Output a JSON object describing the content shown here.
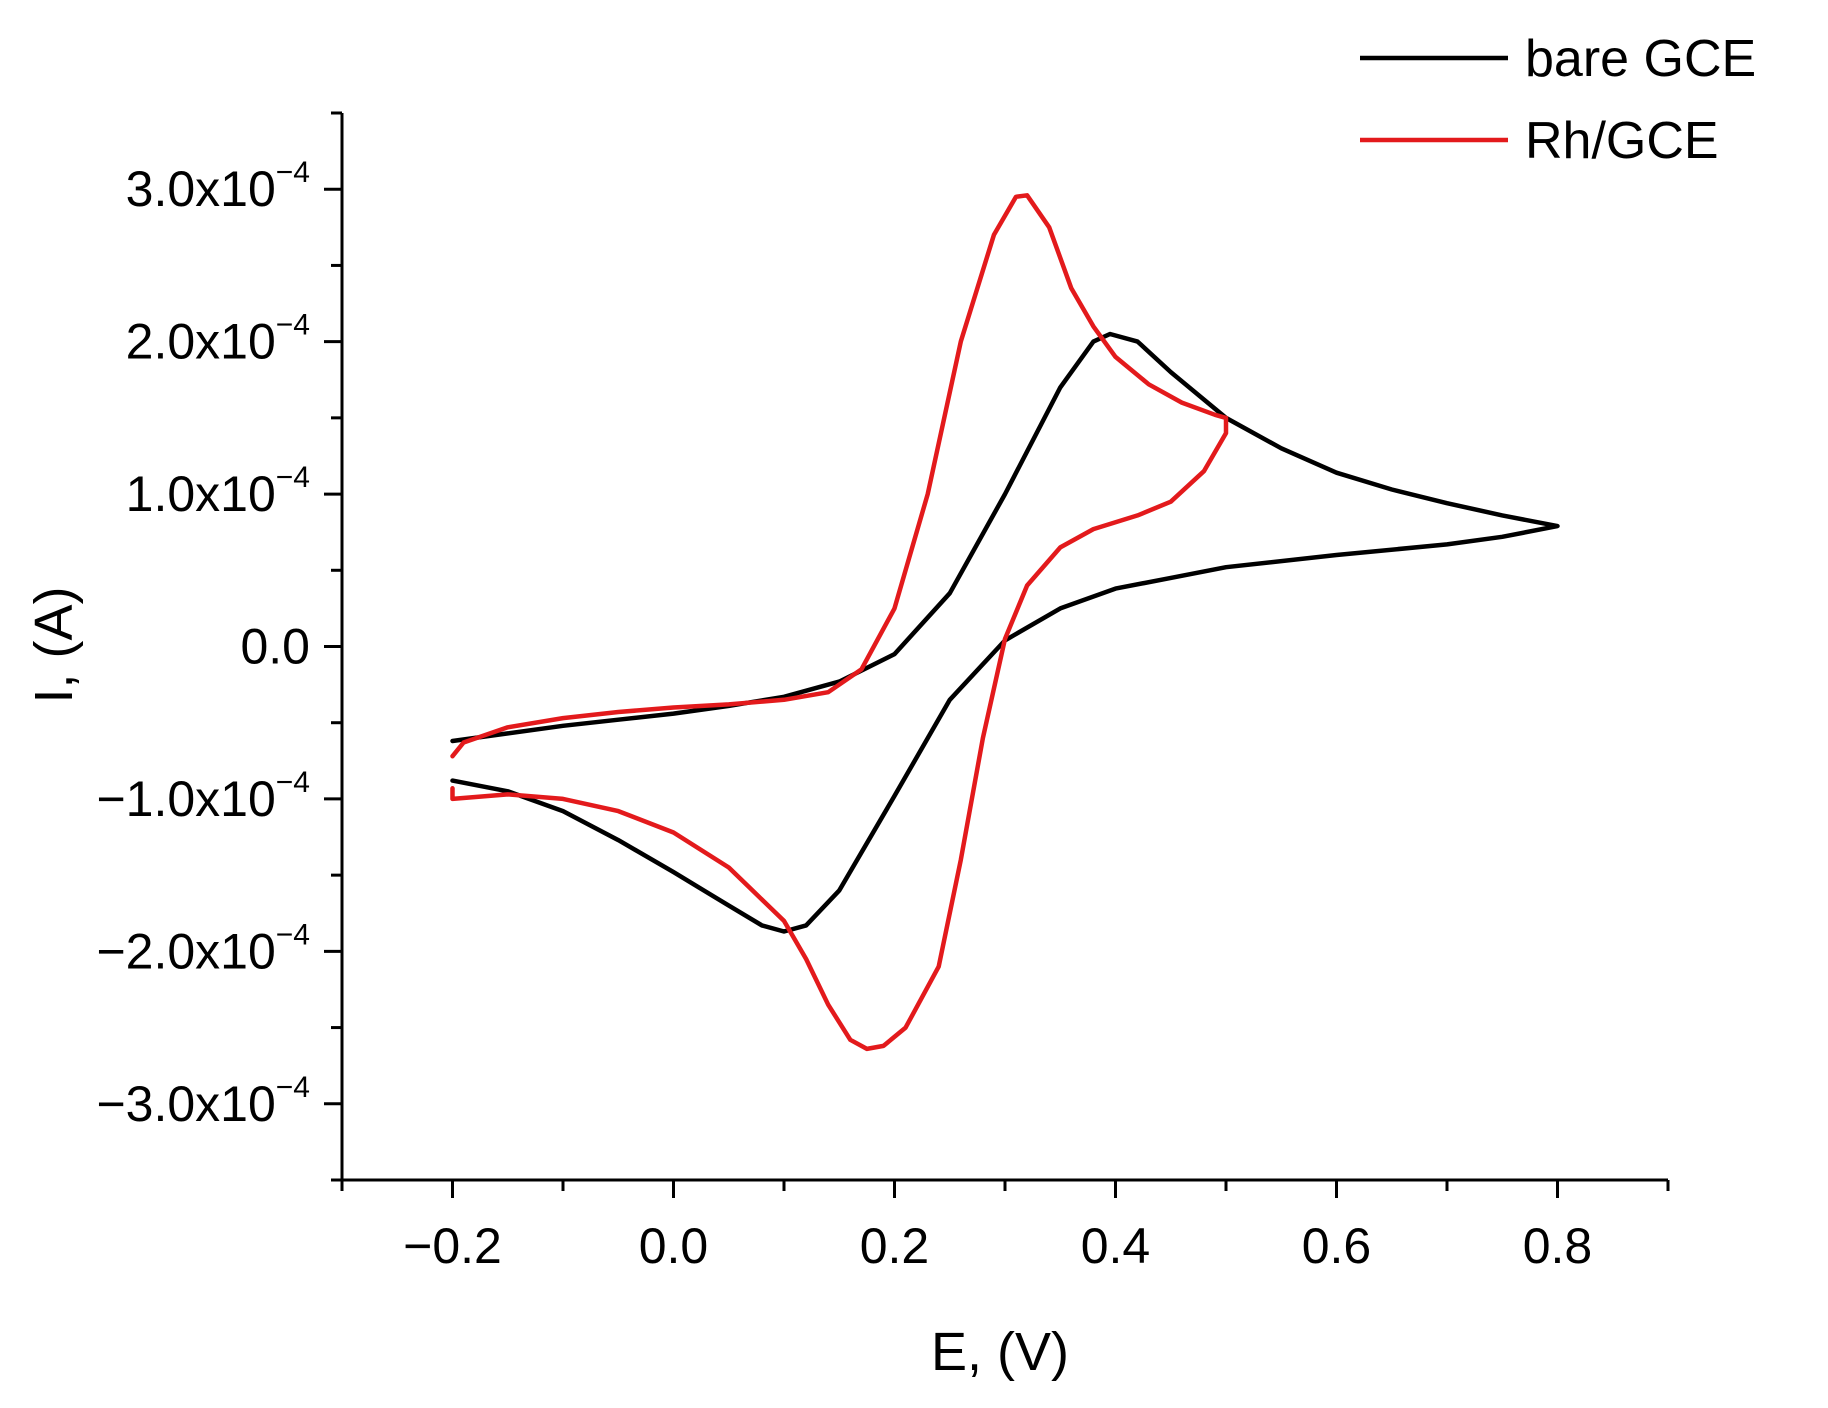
{
  "chart_data": {
    "type": "line",
    "title": "",
    "xlabel": "E, (V)",
    "ylabel": "I, (A)",
    "xlim": [
      -0.3,
      0.9
    ],
    "ylim": [
      -0.00035,
      0.00035
    ],
    "x_ticks": [
      {
        "value": -0.2,
        "label": "−0.2"
      },
      {
        "value": 0.0,
        "label": "0.0"
      },
      {
        "value": 0.2,
        "label": "0.2"
      },
      {
        "value": 0.4,
        "label": "0.4"
      },
      {
        "value": 0.6,
        "label": "0.6"
      },
      {
        "value": 0.8,
        "label": "0.8"
      }
    ],
    "y_ticks": [
      {
        "value": 0.0003,
        "mantissa": "3.0x10",
        "exponent": "−4"
      },
      {
        "value": 0.0002,
        "mantissa": "2.0x10",
        "exponent": "−4"
      },
      {
        "value": 0.0001,
        "mantissa": "1.0x10",
        "exponent": "−4"
      },
      {
        "value": 0.0,
        "mantissa": "0.0",
        "exponent": ""
      },
      {
        "value": -0.0001,
        "mantissa": "−1.0x10",
        "exponent": "−4"
      },
      {
        "value": -0.0002,
        "mantissa": "−2.0x10",
        "exponent": "−4"
      },
      {
        "value": -0.0003,
        "mantissa": "−3.0x10",
        "exponent": "−4"
      }
    ],
    "grid": false,
    "legend": "top-right",
    "series": [
      {
        "name": "bare GCE",
        "color": "#000000",
        "points": [
          [
            -0.2,
            -6.2e-05
          ],
          [
            -0.15,
            -5.7e-05
          ],
          [
            -0.1,
            -5.2e-05
          ],
          [
            -0.05,
            -4.8e-05
          ],
          [
            0.0,
            -4.4e-05
          ],
          [
            0.05,
            -3.9e-05
          ],
          [
            0.1,
            -3.3e-05
          ],
          [
            0.15,
            -2.3e-05
          ],
          [
            0.2,
            -5e-06
          ],
          [
            0.25,
            3.5e-05
          ],
          [
            0.3,
            0.0001
          ],
          [
            0.35,
            0.00017
          ],
          [
            0.38,
            0.0002
          ],
          [
            0.395,
            0.000205
          ],
          [
            0.42,
            0.0002
          ],
          [
            0.45,
            0.00018
          ],
          [
            0.5,
            0.00015
          ],
          [
            0.55,
            0.00013
          ],
          [
            0.6,
            0.000114
          ],
          [
            0.65,
            0.000103
          ],
          [
            0.7,
            9.4e-05
          ],
          [
            0.75,
            8.6e-05
          ],
          [
            0.8,
            7.9e-05
          ],
          [
            0.75,
            7.2e-05
          ],
          [
            0.7,
            6.7e-05
          ],
          [
            0.6,
            6e-05
          ],
          [
            0.5,
            5.2e-05
          ],
          [
            0.45,
            4.5e-05
          ],
          [
            0.4,
            3.8e-05
          ],
          [
            0.35,
            2.5e-05
          ],
          [
            0.3,
            4e-06
          ],
          [
            0.25,
            -3.5e-05
          ],
          [
            0.2,
            -9.8e-05
          ],
          [
            0.15,
            -0.00016
          ],
          [
            0.12,
            -0.000183
          ],
          [
            0.1,
            -0.000187
          ],
          [
            0.08,
            -0.000183
          ],
          [
            0.05,
            -0.00017
          ],
          [
            0.0,
            -0.000148
          ],
          [
            -0.05,
            -0.000127
          ],
          [
            -0.1,
            -0.000108
          ],
          [
            -0.15,
            -9.5e-05
          ],
          [
            -0.2,
            -8.8e-05
          ]
        ]
      },
      {
        "name": "Rh/GCE",
        "color": "#e31a1c",
        "points": [
          [
            -0.2,
            -7.2e-05
          ],
          [
            -0.19,
            -6.3e-05
          ],
          [
            -0.15,
            -5.3e-05
          ],
          [
            -0.1,
            -4.7e-05
          ],
          [
            -0.05,
            -4.3e-05
          ],
          [
            0.0,
            -4e-05
          ],
          [
            0.05,
            -3.8e-05
          ],
          [
            0.1,
            -3.5e-05
          ],
          [
            0.14,
            -3e-05
          ],
          [
            0.17,
            -1.5e-05
          ],
          [
            0.2,
            2.5e-05
          ],
          [
            0.23,
            0.0001
          ],
          [
            0.26,
            0.0002
          ],
          [
            0.29,
            0.00027
          ],
          [
            0.31,
            0.000295
          ],
          [
            0.32,
            0.000296
          ],
          [
            0.34,
            0.000275
          ],
          [
            0.36,
            0.000235
          ],
          [
            0.38,
            0.00021
          ],
          [
            0.4,
            0.00019
          ],
          [
            0.43,
            0.000172
          ],
          [
            0.46,
            0.00016
          ],
          [
            0.49,
            0.000152
          ],
          [
            0.5,
            0.00015
          ],
          [
            0.5,
            0.00014
          ],
          [
            0.48,
            0.000115
          ],
          [
            0.45,
            9.5e-05
          ],
          [
            0.42,
            8.6e-05
          ],
          [
            0.38,
            7.7e-05
          ],
          [
            0.35,
            6.5e-05
          ],
          [
            0.32,
            4e-05
          ],
          [
            0.3,
            5e-06
          ],
          [
            0.28,
            -6e-05
          ],
          [
            0.26,
            -0.00014
          ],
          [
            0.24,
            -0.00021
          ],
          [
            0.21,
            -0.00025
          ],
          [
            0.19,
            -0.000262
          ],
          [
            0.175,
            -0.000264
          ],
          [
            0.16,
            -0.000258
          ],
          [
            0.14,
            -0.000235
          ],
          [
            0.12,
            -0.000205
          ],
          [
            0.1,
            -0.00018
          ],
          [
            0.05,
            -0.000145
          ],
          [
            0.0,
            -0.000122
          ],
          [
            -0.05,
            -0.000108
          ],
          [
            -0.1,
            -0.0001
          ],
          [
            -0.15,
            -9.7e-05
          ],
          [
            -0.2,
            -0.0001
          ],
          [
            -0.2,
            -9.3e-05
          ]
        ]
      }
    ]
  }
}
